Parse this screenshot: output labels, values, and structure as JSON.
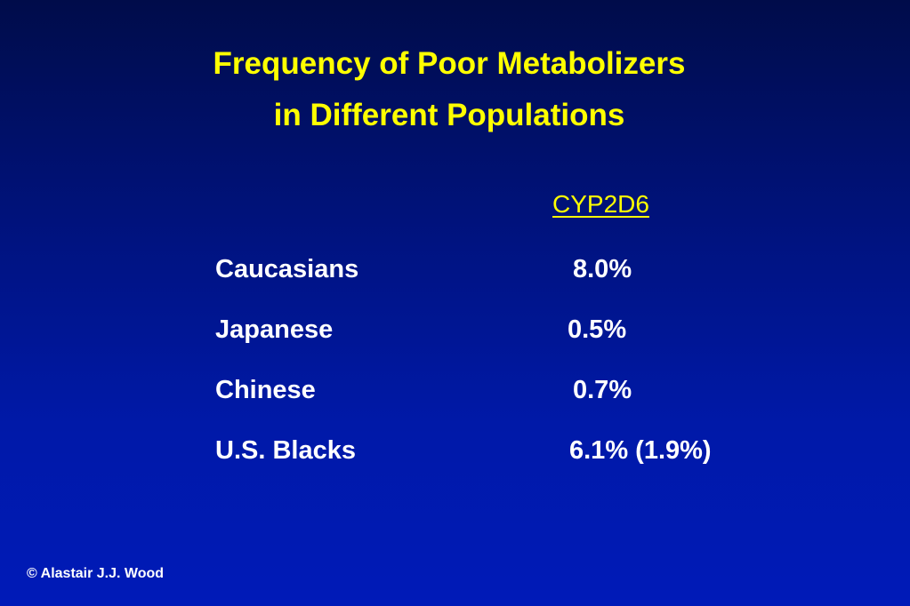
{
  "slide": {
    "title_line1": "Frequency of Poor Metabolizers",
    "title_line2": "in Different Populations",
    "column_header": "CYP2D6",
    "rows": [
      {
        "population": "Caucasians",
        "value": "8.0%"
      },
      {
        "population": "Japanese",
        "value": "0.5%"
      },
      {
        "population": "Chinese",
        "value": "0.7%"
      },
      {
        "population": "U.S. Blacks",
        "value": "6.1% (1.9%)"
      }
    ],
    "footer": "© Alastair J.J. Wood"
  },
  "colors": {
    "title": "#ffff00",
    "body_text": "#ffffff",
    "background_top": "#000c4a",
    "background_bottom": "#001ab8"
  }
}
